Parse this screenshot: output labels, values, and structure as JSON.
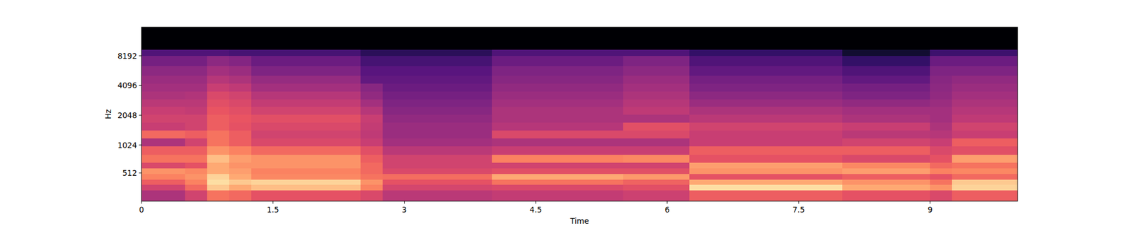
{
  "chart_data": {
    "type": "heatmap",
    "x_label": "Time",
    "y_label": "Hz",
    "xlim": [
      0,
      10
    ],
    "ylim": [
      0,
      16000
    ],
    "xticks": [
      0,
      1.5,
      3,
      4.5,
      6,
      7.5,
      9
    ],
    "yticks": [
      512,
      1024,
      2048,
      4096,
      8192
    ],
    "log": "y",
    "zlim": [
      -80,
      0
    ],
    "x_bins": [
      0,
      0.25,
      0.5,
      0.75,
      1,
      1.25,
      1.5,
      1.75,
      2,
      2.25,
      2.5,
      2.75,
      3,
      3.25,
      3.5,
      3.75,
      4,
      4.25,
      4.5,
      4.75,
      5,
      5.25,
      5.5,
      5.75,
      6,
      6.25,
      6.5,
      6.75,
      7,
      7.25,
      7.5,
      7.75,
      8,
      8.25,
      8.5,
      8.75,
      9,
      9.25,
      9.5,
      9.75,
      10
    ],
    "y_bins": [
      0,
      200,
      300,
      400,
      500,
      600,
      700,
      850,
      1000,
      1200,
      1450,
      1750,
      2100,
      2500,
      3000,
      3600,
      4300,
      5200,
      6500,
      8200,
      9500,
      16000
    ],
    "cells": [
      [
        -38,
        -38,
        -30,
        -18,
        -20,
        -25,
        -25,
        -25,
        -25,
        -25,
        -28,
        -35,
        -35,
        -35,
        -35,
        -35,
        -33,
        -33,
        -33,
        -33,
        -33,
        -33,
        -31,
        -31,
        -31,
        -22,
        -22,
        -22,
        -22,
        -22,
        -22,
        -22,
        -25,
        -25,
        -25,
        -25,
        -28,
        -22,
        -22,
        -22
      ],
      [
        -30,
        -30,
        -20,
        -5,
        -8,
        -6,
        -6,
        -6,
        -6,
        -6,
        -15,
        -29,
        -29,
        -29,
        -29,
        -29,
        -28,
        -28,
        -28,
        -28,
        -28,
        -28,
        -26,
        -26,
        -26,
        -3,
        -3,
        -3,
        -3,
        -3,
        -3,
        -3,
        -8,
        -8,
        -8,
        -8,
        -12,
        -4,
        -4,
        -4
      ],
      [
        -22,
        -22,
        -15,
        -3,
        -5,
        -4,
        -4,
        -4,
        -4,
        -4,
        -12,
        -25,
        -25,
        -25,
        -25,
        -25,
        -18,
        -18,
        -18,
        -18,
        -18,
        -18,
        -21,
        -21,
        -21,
        -8,
        -8,
        -8,
        -8,
        -8,
        -8,
        -8,
        -12,
        -12,
        -12,
        -12,
        -18,
        -5,
        -5,
        -5
      ],
      [
        -15,
        -15,
        -12,
        -4,
        -8,
        -14,
        -14,
        -14,
        -14,
        -14,
        -18,
        -19,
        -19,
        -19,
        -19,
        -19,
        -8,
        -8,
        -8,
        -8,
        -8,
        -8,
        -11,
        -11,
        -11,
        -25,
        -25,
        -25,
        -25,
        -25,
        -25,
        -25,
        -22,
        -22,
        -22,
        -22,
        -25,
        -20,
        -20,
        -20
      ],
      [
        -12,
        -12,
        -14,
        -8,
        -10,
        -15,
        -15,
        -15,
        -15,
        -15,
        -20,
        -28,
        -28,
        -28,
        -28,
        -28,
        -26,
        -26,
        -26,
        -26,
        -26,
        -26,
        -26,
        -26,
        -26,
        -12,
        -12,
        -12,
        -12,
        -12,
        -12,
        -12,
        -10,
        -10,
        -10,
        -10,
        -15,
        -14,
        -14,
        -14
      ],
      [
        -28,
        -28,
        -25,
        -8,
        -12,
        -12,
        -12,
        -12,
        -12,
        -12,
        -20,
        -30,
        -30,
        -30,
        -30,
        -30,
        -30,
        -30,
        -30,
        -30,
        -30,
        -30,
        -30,
        -30,
        -30,
        -10,
        -10,
        -10,
        -10,
        -10,
        -10,
        -10,
        -14,
        -14,
        -14,
        -14,
        -20,
        -18,
        -18,
        -18
      ],
      [
        -18,
        -18,
        -18,
        -6,
        -10,
        -12,
        -12,
        -12,
        -12,
        -12,
        -22,
        -30,
        -30,
        -30,
        -30,
        -30,
        -15,
        -15,
        -15,
        -15,
        -15,
        -15,
        -14,
        -14,
        -14,
        -25,
        -25,
        -25,
        -25,
        -25,
        -25,
        -25,
        -28,
        -28,
        -28,
        -28,
        -25,
        -10,
        -10,
        -10
      ],
      [
        -22,
        -22,
        -22,
        -12,
        -15,
        -20,
        -20,
        -20,
        -20,
        -20,
        -26,
        -35,
        -35,
        -35,
        -35,
        -35,
        -32,
        -32,
        -32,
        -32,
        -32,
        -32,
        -32,
        -32,
        -32,
        -22,
        -22,
        -22,
        -22,
        -22,
        -22,
        -22,
        -22,
        -22,
        -22,
        -22,
        -28,
        -26,
        -26,
        -26
      ],
      [
        -38,
        -38,
        -30,
        -18,
        -22,
        -28,
        -28,
        -28,
        -28,
        -28,
        -32,
        -40,
        -40,
        -40,
        -40,
        -40,
        -38,
        -38,
        -38,
        -38,
        -38,
        -38,
        -38,
        -38,
        -38,
        -32,
        -32,
        -32,
        -32,
        -32,
        -32,
        -32,
        -30,
        -30,
        -30,
        -30,
        -32,
        -22,
        -22,
        -22
      ],
      [
        -20,
        -20,
        -22,
        -18,
        -22,
        -30,
        -30,
        -30,
        -30,
        -30,
        -34,
        -42,
        -42,
        -42,
        -42,
        -42,
        -28,
        -28,
        -28,
        -28,
        -28,
        -28,
        -28,
        -28,
        -28,
        -32,
        -32,
        -32,
        -32,
        -32,
        -32,
        -32,
        -35,
        -35,
        -35,
        -35,
        -36,
        -32,
        -32,
        -32
      ],
      [
        -32,
        -32,
        -30,
        -22,
        -25,
        -28,
        -28,
        -28,
        -28,
        -28,
        -33,
        -42,
        -42,
        -42,
        -42,
        -42,
        -36,
        -36,
        -36,
        -36,
        -36,
        -36,
        -26,
        -26,
        -26,
        -30,
        -30,
        -30,
        -30,
        -30,
        -30,
        -30,
        -32,
        -32,
        -32,
        -32,
        -38,
        -30,
        -30,
        -30
      ],
      [
        -30,
        -30,
        -30,
        -22,
        -24,
        -26,
        -26,
        -26,
        -26,
        -26,
        -32,
        -44,
        -44,
        -44,
        -44,
        -44,
        -38,
        -38,
        -38,
        -38,
        -38,
        -38,
        -38,
        -38,
        -38,
        -35,
        -35,
        -35,
        -35,
        -35,
        -35,
        -35,
        -38,
        -38,
        -38,
        -38,
        -40,
        -34,
        -34,
        -34
      ],
      [
        -32,
        -32,
        -33,
        -24,
        -26,
        -30,
        -30,
        -30,
        -30,
        -30,
        -36,
        -46,
        -46,
        -46,
        -46,
        -46,
        -38,
        -38,
        -38,
        -38,
        -38,
        -38,
        -34,
        -34,
        -34,
        -38,
        -38,
        -38,
        -38,
        -38,
        -38,
        -38,
        -40,
        -40,
        -40,
        -40,
        -40,
        -36,
        -36,
        -36
      ],
      [
        -35,
        -35,
        -35,
        -26,
        -28,
        -33,
        -33,
        -33,
        -33,
        -33,
        -40,
        -48,
        -48,
        -48,
        -48,
        -48,
        -40,
        -40,
        -40,
        -40,
        -40,
        -40,
        -36,
        -36,
        -36,
        -42,
        -42,
        -42,
        -42,
        -42,
        -42,
        -42,
        -44,
        -44,
        -44,
        -44,
        -42,
        -38,
        -38,
        -38
      ],
      [
        -38,
        -38,
        -37,
        -28,
        -30,
        -36,
        -36,
        -36,
        -36,
        -36,
        -44,
        -50,
        -50,
        -50,
        -50,
        -50,
        -42,
        -42,
        -42,
        -42,
        -42,
        -42,
        -38,
        -38,
        -38,
        -45,
        -45,
        -45,
        -45,
        -45,
        -45,
        -45,
        -48,
        -48,
        -48,
        -48,
        -44,
        -40,
        -40,
        -40
      ],
      [
        -40,
        -40,
        -40,
        -32,
        -34,
        -40,
        -40,
        -40,
        -40,
        -40,
        -46,
        -52,
        -52,
        -52,
        -52,
        -52,
        -44,
        -44,
        -44,
        -44,
        -44,
        -44,
        -40,
        -40,
        -40,
        -48,
        -48,
        -48,
        -48,
        -48,
        -48,
        -48,
        -50,
        -50,
        -50,
        -50,
        -45,
        -42,
        -42,
        -42
      ],
      [
        -42,
        -42,
        -42,
        -36,
        -38,
        -43,
        -43,
        -43,
        -43,
        -43,
        -54,
        -54,
        -54,
        -54,
        -54,
        -54,
        -46,
        -46,
        -46,
        -46,
        -46,
        -46,
        -42,
        -42,
        -42,
        -50,
        -50,
        -50,
        -50,
        -50,
        -50,
        -50,
        -54,
        -54,
        -54,
        -54,
        -46,
        -44,
        -44,
        -44
      ],
      [
        -45,
        -45,
        -45,
        -40,
        -42,
        -48,
        -48,
        -48,
        -48,
        -48,
        -56,
        -56,
        -56,
        -56,
        -56,
        -56,
        -48,
        -48,
        -48,
        -48,
        -48,
        -48,
        -45,
        -45,
        -45,
        -54,
        -54,
        -54,
        -54,
        -54,
        -54,
        -54,
        -58,
        -58,
        -58,
        -58,
        -48,
        -48,
        -48,
        -48
      ],
      [
        -50,
        -50,
        -50,
        -45,
        -47,
        -52,
        -52,
        -52,
        -52,
        -52,
        -60,
        -60,
        -60,
        -60,
        -60,
        -60,
        -52,
        -52,
        -52,
        -52,
        -52,
        -52,
        -48,
        -48,
        -48,
        -58,
        -58,
        -58,
        -58,
        -58,
        -58,
        -58,
        -64,
        -64,
        -64,
        -64,
        -52,
        -52,
        -52,
        -52
      ],
      [
        -58,
        -58,
        -58,
        -58,
        -60,
        -60,
        -60,
        -60,
        -60,
        -60,
        -66,
        -66,
        -66,
        -66,
        -66,
        -66,
        -58,
        -58,
        -58,
        -58,
        -58,
        -58,
        -58,
        -58,
        -58,
        -64,
        -64,
        -64,
        -64,
        -64,
        -64,
        -64,
        -72,
        -72,
        -72,
        -72,
        -62,
        -62,
        -62,
        -62
      ],
      [
        -80,
        -80,
        -80,
        -80,
        -80,
        -80,
        -80,
        -80,
        -80,
        -80,
        -80,
        -80,
        -80,
        -80,
        -80,
        -80,
        -80,
        -80,
        -80,
        -80,
        -80,
        -80,
        -80,
        -80,
        -80,
        -80,
        -80,
        -80,
        -80,
        -80,
        -80,
        -80,
        -80,
        -80,
        -80,
        -80,
        -80,
        -80,
        -80,
        -80
      ]
    ]
  }
}
